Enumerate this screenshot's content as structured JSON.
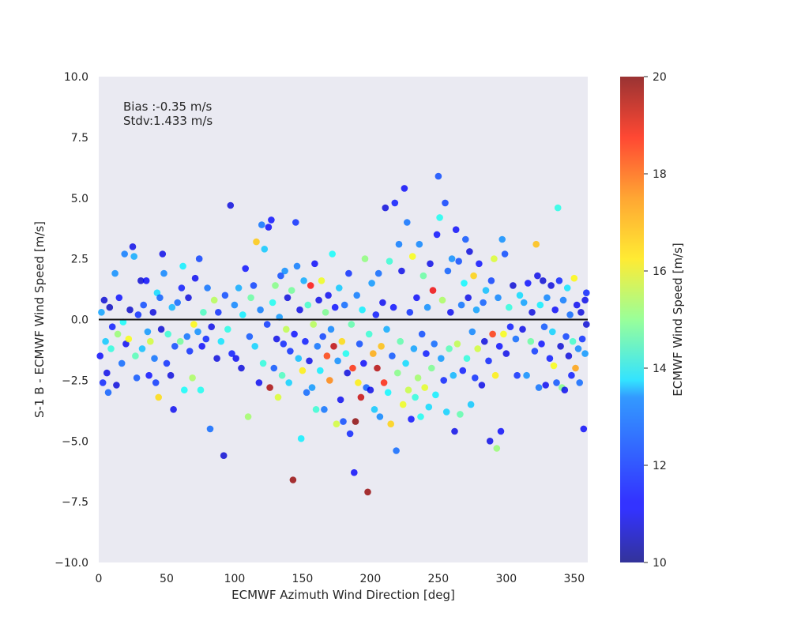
{
  "chart_data": {
    "type": "scatter",
    "xlabel": "ECMWF Azimuth Wind Direction [deg]",
    "ylabel": "S-1 B - ECMWF Wind Speed [m/s]",
    "xlim": [
      0,
      360
    ],
    "ylim": [
      -10,
      10
    ],
    "x_ticks": [
      0,
      50,
      100,
      150,
      200,
      250,
      300,
      350
    ],
    "y_ticks": [
      -10.0,
      -7.5,
      -5.0,
      -2.5,
      0.0,
      2.5,
      5.0,
      7.5,
      10.0
    ],
    "y_tick_labels": [
      "−10.0",
      "−7.5",
      "−5.0",
      "−2.5",
      "0.0",
      "2.5",
      "5.0",
      "7.5",
      "10.0"
    ],
    "annotations": [
      "Bias :-0.35 m/s",
      "Stdv:1.433 m/s"
    ],
    "reference_line_y": 0,
    "grid": false,
    "background": "#eaeaf2",
    "colorbar": {
      "label": "ECMWF Wind Speed [m/s]",
      "range": [
        10,
        20
      ],
      "ticks": [
        10,
        12,
        14,
        16,
        18,
        20
      ],
      "colormap": "jet"
    },
    "points": [
      [
        1,
        -1.5,
        11.2
      ],
      [
        2,
        0.3,
        12.8
      ],
      [
        3,
        -2.6,
        11.5
      ],
      [
        4,
        0.8,
        10.8
      ],
      [
        5,
        -0.9,
        13.2
      ],
      [
        6,
        -2.2,
        11.0
      ],
      [
        7,
        -3.0,
        12.1
      ],
      [
        8,
        0.5,
        10.6
      ],
      [
        9,
        -1.2,
        14.1
      ],
      [
        10,
        -0.3,
        11.4
      ],
      [
        12,
        1.9,
        12.6
      ],
      [
        13,
        -2.7,
        10.9
      ],
      [
        14,
        -0.6,
        15.2
      ],
      [
        15,
        0.9,
        11.3
      ],
      [
        17,
        -1.8,
        12.2
      ],
      [
        18,
        -0.1,
        13.8
      ],
      [
        19,
        2.7,
        12.4
      ],
      [
        20,
        -1.0,
        11.1
      ],
      [
        22,
        -0.8,
        16.2
      ],
      [
        23,
        0.4,
        10.7
      ],
      [
        25,
        3.0,
        11.0
      ],
      [
        26,
        2.6,
        12.9
      ],
      [
        27,
        -1.5,
        14.5
      ],
      [
        28,
        -2.4,
        12.0
      ],
      [
        29,
        0.2,
        11.6
      ],
      [
        31,
        1.6,
        10.8
      ],
      [
        32,
        -1.2,
        13.1
      ],
      [
        33,
        0.6,
        11.9
      ],
      [
        35,
        1.6,
        11.2
      ],
      [
        36,
        -0.5,
        12.7
      ],
      [
        37,
        -2.3,
        11.3
      ],
      [
        38,
        -0.9,
        15.8
      ],
      [
        40,
        0.3,
        10.9
      ],
      [
        41,
        -1.6,
        12.3
      ],
      [
        42,
        -2.6,
        11.7
      ],
      [
        43,
        1.1,
        13.4
      ],
      [
        44,
        -3.2,
        16.6
      ],
      [
        45,
        0.9,
        12.1
      ],
      [
        46,
        -0.4,
        10.8
      ],
      [
        47,
        2.7,
        11.0
      ],
      [
        48,
        1.9,
        12.5
      ],
      [
        50,
        -1.8,
        11.6
      ],
      [
        51,
        -0.6,
        14.2
      ],
      [
        53,
        -2.3,
        10.9
      ],
      [
        54,
        0.5,
        13.0
      ],
      [
        55,
        -3.7,
        11.1
      ],
      [
        56,
        -1.1,
        11.9
      ],
      [
        58,
        0.7,
        12.2
      ],
      [
        60,
        -0.9,
        14.8
      ],
      [
        61,
        1.3,
        11.4
      ],
      [
        62,
        2.2,
        13.6
      ],
      [
        63,
        -2.9,
        13.8
      ],
      [
        65,
        -0.7,
        12.3
      ],
      [
        66,
        0.9,
        10.9
      ],
      [
        67,
        -1.3,
        11.6
      ],
      [
        69,
        -2.4,
        15.4
      ],
      [
        70,
        -0.2,
        16.3
      ],
      [
        71,
        1.7,
        11.1
      ],
      [
        73,
        -0.5,
        12.6
      ],
      [
        74,
        2.5,
        11.8
      ],
      [
        75,
        -2.9,
        13.9
      ],
      [
        76,
        -1.1,
        11.2
      ],
      [
        77,
        0.3,
        14.4
      ],
      [
        79,
        -0.8,
        11.5
      ],
      [
        80,
        1.3,
        12.3
      ],
      [
        82,
        -4.5,
        12.2
      ],
      [
        83,
        -0.3,
        11.0
      ],
      [
        85,
        0.8,
        15.5
      ],
      [
        87,
        -1.6,
        10.9
      ],
      [
        88,
        0.3,
        11.6
      ],
      [
        90,
        -0.9,
        13.5
      ],
      [
        92,
        -5.6,
        10.8
      ],
      [
        93,
        1.0,
        11.9
      ],
      [
        95,
        -0.4,
        14.0
      ],
      [
        97,
        4.7,
        10.9
      ],
      [
        98,
        -1.4,
        11.4
      ],
      [
        100,
        0.6,
        12.5
      ],
      [
        101,
        -1.6,
        11.1
      ],
      [
        103,
        1.3,
        12.9
      ],
      [
        105,
        -2.0,
        10.9
      ],
      [
        106,
        0.2,
        13.6
      ],
      [
        108,
        2.1,
        11.3
      ],
      [
        110,
        -4.0,
        15.3
      ],
      [
        111,
        -0.7,
        12.0
      ],
      [
        112,
        0.9,
        14.7
      ],
      [
        114,
        1.4,
        11.8
      ],
      [
        115,
        -1.1,
        13.3
      ],
      [
        116,
        3.2,
        16.8
      ],
      [
        118,
        -2.6,
        11.1
      ],
      [
        119,
        0.4,
        12.4
      ],
      [
        120,
        3.9,
        12.3
      ],
      [
        121,
        -1.8,
        14.1
      ],
      [
        122,
        2.9,
        13.2
      ],
      [
        124,
        -0.2,
        11.7
      ],
      [
        125,
        3.8,
        11.2
      ],
      [
        126,
        -2.8,
        19.6
      ],
      [
        127,
        4.1,
        11.3
      ],
      [
        128,
        0.7,
        13.9
      ],
      [
        129,
        -2.0,
        12.0
      ],
      [
        130,
        1.4,
        15.0
      ],
      [
        131,
        -0.8,
        11.0
      ],
      [
        132,
        -3.2,
        15.9
      ],
      [
        133,
        0.1,
        12.7
      ],
      [
        134,
        1.8,
        11.9
      ],
      [
        135,
        -2.3,
        14.4
      ],
      [
        136,
        -1.0,
        11.5
      ],
      [
        137,
        2.0,
        12.6
      ],
      [
        138,
        -0.4,
        15.6
      ],
      [
        139,
        0.9,
        10.9
      ],
      [
        140,
        -2.6,
        13.3
      ],
      [
        141,
        -1.3,
        11.6
      ],
      [
        142,
        1.2,
        14.8
      ],
      [
        143,
        -6.6,
        19.8
      ],
      [
        144,
        -0.6,
        11.3
      ],
      [
        145,
        4.0,
        11.6
      ],
      [
        146,
        2.2,
        12.4
      ],
      [
        147,
        -1.6,
        13.1
      ],
      [
        148,
        0.4,
        11.0
      ],
      [
        149,
        -4.9,
        13.6
      ],
      [
        150,
        -2.1,
        16.4
      ],
      [
        151,
        1.6,
        12.9
      ],
      [
        152,
        -0.9,
        11.4
      ],
      [
        153,
        -3.0,
        12.2
      ],
      [
        154,
        0.6,
        14.3
      ],
      [
        155,
        -1.7,
        11.0
      ],
      [
        156,
        1.4,
        18.7
      ],
      [
        157,
        -2.8,
        12.7
      ],
      [
        158,
        -0.2,
        15.5
      ],
      [
        159,
        2.3,
        11.2
      ],
      [
        160,
        -3.7,
        14.2
      ],
      [
        161,
        -1.1,
        12.3
      ],
      [
        162,
        0.8,
        11.0
      ],
      [
        163,
        -2.1,
        13.6
      ],
      [
        164,
        1.6,
        16.1
      ],
      [
        165,
        -0.7,
        11.8
      ],
      [
        166,
        -3.7,
        12.3
      ],
      [
        167,
        0.3,
        14.9
      ],
      [
        168,
        -1.5,
        18.2
      ],
      [
        169,
        1.0,
        11.1
      ],
      [
        170,
        -2.5,
        17.5
      ],
      [
        171,
        -0.4,
        12.5
      ],
      [
        172,
        2.7,
        13.8
      ],
      [
        173,
        -1.1,
        19.4
      ],
      [
        174,
        0.5,
        11.3
      ],
      [
        175,
        -4.3,
        15.8
      ],
      [
        176,
        -1.7,
        12.6
      ],
      [
        177,
        1.3,
        13.2
      ],
      [
        178,
        -3.3,
        11.1
      ],
      [
        179,
        -0.9,
        16.6
      ],
      [
        180,
        -4.2,
        11.9
      ],
      [
        181,
        0.6,
        12.2
      ],
      [
        182,
        -1.4,
        13.9
      ],
      [
        183,
        -2.2,
        10.9
      ],
      [
        184,
        1.9,
        11.6
      ],
      [
        185,
        -4.7,
        11.5
      ],
      [
        186,
        -0.2,
        14.6
      ],
      [
        187,
        -2.0,
        18.4
      ],
      [
        188,
        -6.3,
        11.2
      ],
      [
        189,
        -4.2,
        19.9
      ],
      [
        190,
        1.0,
        12.4
      ],
      [
        191,
        -2.6,
        16.4
      ],
      [
        192,
        -1.0,
        11.9
      ],
      [
        193,
        -3.2,
        19.3
      ],
      [
        194,
        0.4,
        13.6
      ],
      [
        195,
        -1.8,
        11.2
      ],
      [
        196,
        2.5,
        15.1
      ],
      [
        197,
        -2.8,
        12.1
      ],
      [
        198,
        -7.1,
        19.8
      ],
      [
        199,
        -0.6,
        14.2
      ],
      [
        200,
        -2.9,
        11.0
      ],
      [
        201,
        1.5,
        12.7
      ],
      [
        202,
        -1.4,
        17.1
      ],
      [
        203,
        -3.7,
        13.2
      ],
      [
        204,
        0.2,
        11.4
      ],
      [
        205,
        -2.0,
        19.5
      ],
      [
        206,
        1.9,
        12.2
      ],
      [
        207,
        -4.0,
        12.5
      ],
      [
        208,
        -1.1,
        16.9
      ],
      [
        209,
        0.7,
        11.1
      ],
      [
        210,
        -2.6,
        18.5
      ],
      [
        211,
        4.6,
        10.9
      ],
      [
        212,
        -0.4,
        12.9
      ],
      [
        213,
        -3.0,
        13.7
      ],
      [
        214,
        2.4,
        14.2
      ],
      [
        215,
        -4.3,
        16.7
      ],
      [
        216,
        -1.5,
        12.0
      ],
      [
        217,
        0.5,
        11.3
      ],
      [
        218,
        4.8,
        11.4
      ],
      [
        219,
        -5.4,
        12.2
      ],
      [
        220,
        -2.2,
        15.0
      ],
      [
        221,
        3.1,
        12.4
      ],
      [
        222,
        -0.9,
        14.6
      ],
      [
        223,
        2.0,
        11.0
      ],
      [
        224,
        -3.5,
        16.1
      ],
      [
        225,
        5.4,
        11.2
      ],
      [
        226,
        -1.8,
        13.4
      ],
      [
        227,
        4.0,
        12.3
      ],
      [
        228,
        -2.9,
        15.7
      ],
      [
        229,
        0.3,
        11.6
      ],
      [
        230,
        -4.1,
        11.3
      ],
      [
        231,
        2.6,
        16.2
      ],
      [
        232,
        -1.2,
        12.8
      ],
      [
        233,
        -3.2,
        14.1
      ],
      [
        234,
        0.9,
        11.2
      ],
      [
        235,
        -2.4,
        15.3
      ],
      [
        236,
        3.1,
        12.5
      ],
      [
        237,
        -4.0,
        13.9
      ],
      [
        238,
        -0.6,
        11.9
      ],
      [
        239,
        1.8,
        14.7
      ],
      [
        240,
        -2.8,
        16.0
      ],
      [
        241,
        -1.4,
        11.4
      ],
      [
        242,
        0.5,
        12.6
      ],
      [
        243,
        -3.6,
        13.4
      ],
      [
        244,
        2.3,
        11.0
      ],
      [
        245,
        -2.0,
        14.9
      ],
      [
        246,
        1.2,
        18.9
      ],
      [
        247,
        -1.0,
        12.2
      ],
      [
        248,
        -3.1,
        13.6
      ],
      [
        249,
        3.5,
        11.3
      ],
      [
        250,
        5.9,
        11.9
      ],
      [
        251,
        4.2,
        13.9
      ],
      [
        252,
        -1.6,
        12.7
      ],
      [
        253,
        0.8,
        15.4
      ],
      [
        254,
        -2.5,
        11.5
      ],
      [
        255,
        4.8,
        11.8
      ],
      [
        256,
        -3.8,
        13.3
      ],
      [
        257,
        2.0,
        12.1
      ],
      [
        258,
        -1.2,
        14.5
      ],
      [
        259,
        0.3,
        11.1
      ],
      [
        260,
        2.5,
        12.6
      ],
      [
        261,
        -2.3,
        13.0
      ],
      [
        262,
        -4.6,
        11.0
      ],
      [
        263,
        3.7,
        11.2
      ],
      [
        264,
        -1.0,
        15.6
      ],
      [
        265,
        2.4,
        11.9
      ],
      [
        266,
        -3.9,
        14.6
      ],
      [
        267,
        0.6,
        12.3
      ],
      [
        268,
        -2.1,
        11.4
      ],
      [
        269,
        1.5,
        13.7
      ],
      [
        270,
        3.3,
        12.0
      ],
      [
        271,
        -1.6,
        14.1
      ],
      [
        272,
        0.9,
        11.0
      ],
      [
        273,
        2.8,
        10.9
      ],
      [
        274,
        -3.5,
        13.2
      ],
      [
        275,
        -0.5,
        12.5
      ],
      [
        276,
        1.8,
        16.7
      ],
      [
        277,
        -2.4,
        11.6
      ],
      [
        278,
        0.4,
        12.8
      ],
      [
        279,
        -1.2,
        15.8
      ],
      [
        280,
        2.3,
        11.3
      ],
      [
        282,
        -2.7,
        11.0
      ],
      [
        283,
        0.7,
        12.1
      ],
      [
        284,
        -0.9,
        10.9
      ],
      [
        285,
        1.2,
        13.1
      ],
      [
        287,
        -1.7,
        11.5
      ],
      [
        288,
        -5.0,
        11.0
      ],
      [
        289,
        1.6,
        11.8
      ],
      [
        290,
        -0.6,
        18.3
      ],
      [
        291,
        2.5,
        15.9
      ],
      [
        292,
        -2.3,
        16.4
      ],
      [
        293,
        -5.3,
        15.2
      ],
      [
        294,
        0.9,
        12.5
      ],
      [
        295,
        -1.1,
        11.3
      ],
      [
        296,
        -4.6,
        11.2
      ],
      [
        297,
        3.3,
        12.6
      ],
      [
        298,
        -0.6,
        16.2
      ],
      [
        299,
        2.7,
        11.9
      ],
      [
        300,
        -1.4,
        11.0
      ],
      [
        302,
        0.5,
        14.1
      ],
      [
        303,
        -0.3,
        11.4
      ],
      [
        305,
        1.4,
        10.8
      ],
      [
        307,
        -0.8,
        12.2
      ],
      [
        308,
        -2.3,
        11.6
      ],
      [
        310,
        1.0,
        13.4
      ],
      [
        312,
        -0.4,
        11.0
      ],
      [
        313,
        0.7,
        12.8
      ],
      [
        315,
        -2.3,
        12.6
      ],
      [
        316,
        1.5,
        11.3
      ],
      [
        318,
        -0.9,
        14.7
      ],
      [
        319,
        0.3,
        10.9
      ],
      [
        321,
        -1.3,
        11.7
      ],
      [
        322,
        3.1,
        16.9
      ],
      [
        323,
        1.8,
        11.0
      ],
      [
        324,
        -2.8,
        12.3
      ],
      [
        325,
        0.6,
        13.6
      ],
      [
        326,
        -1.0,
        11.3
      ],
      [
        327,
        1.6,
        10.8
      ],
      [
        328,
        -0.3,
        12.0
      ],
      [
        329,
        -2.7,
        11.1
      ],
      [
        330,
        0.9,
        12.5
      ],
      [
        332,
        -1.6,
        11.4
      ],
      [
        333,
        1.4,
        10.9
      ],
      [
        334,
        -0.5,
        13.3
      ],
      [
        335,
        -1.9,
        16.2
      ],
      [
        336,
        0.4,
        11.2
      ],
      [
        337,
        -2.6,
        12.0
      ],
      [
        338,
        4.6,
        14.0
      ],
      [
        339,
        1.6,
        11.5
      ],
      [
        340,
        -1.1,
        10.8
      ],
      [
        341,
        -2.8,
        15.0
      ],
      [
        342,
        0.8,
        12.4
      ],
      [
        343,
        -2.9,
        11.1
      ],
      [
        344,
        -0.7,
        11.8
      ],
      [
        345,
        1.3,
        13.5
      ],
      [
        346,
        -1.5,
        10.9
      ],
      [
        347,
        0.2,
        12.2
      ],
      [
        348,
        -2.3,
        11.4
      ],
      [
        349,
        -0.9,
        14.3
      ],
      [
        350,
        1.7,
        16.3
      ],
      [
        351,
        -2.0,
        17.2
      ],
      [
        352,
        0.6,
        11.1
      ],
      [
        353,
        -1.2,
        12.5
      ],
      [
        354,
        -2.6,
        12.2
      ],
      [
        355,
        0.3,
        10.9
      ],
      [
        356,
        -0.8,
        11.6
      ],
      [
        357,
        -4.5,
        11.2
      ],
      [
        358,
        0.8,
        11.0
      ],
      [
        358,
        -1.4,
        12.7
      ],
      [
        359,
        -0.2,
        10.8
      ],
      [
        359,
        1.1,
        11.5
      ]
    ]
  }
}
